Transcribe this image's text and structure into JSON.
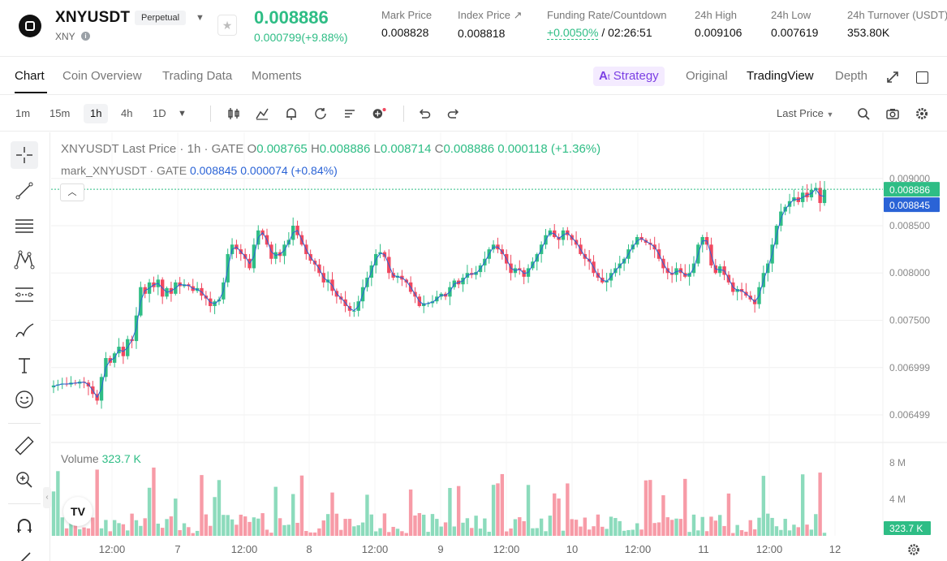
{
  "ticker": {
    "symbol": "XNYUSDT",
    "contract_type": "Perpetual",
    "base": "XNY",
    "last_price": "0.008886",
    "change": "0.000799(+9.88%)",
    "stats": [
      {
        "label": "Mark Price",
        "value": "0.008828"
      },
      {
        "label": "Index Price ↗",
        "value": "0.008818"
      },
      {
        "label": "Funding Rate/Countdown",
        "value_green": "+0.0050%",
        "value_rest": " / 02:26:51"
      },
      {
        "label": "24h High",
        "value": "0.009106"
      },
      {
        "label": "24h Low",
        "value": "0.007619"
      },
      {
        "label": "24h Turnover (USDT)",
        "value": "353.80K"
      }
    ]
  },
  "tabs": [
    "Chart",
    "Coin Overview",
    "Trading Data",
    "Moments"
  ],
  "right_tabs": {
    "strategy": "Strategy",
    "original": "Original",
    "tradingview": "TradingView",
    "depth": "Depth"
  },
  "intervals": [
    "1m",
    "15m",
    "1h",
    "4h",
    "1D"
  ],
  "active_interval": "1h",
  "price_type": "Last Price",
  "legend": {
    "title": "XNYUSDT Last Price · 1h · GATE",
    "o_label": "O",
    "o": "0.008765",
    "h_label": "H",
    "h": "0.008886",
    "l_label": "L",
    "l": "0.008714",
    "c_label": "C",
    "c": "0.008886",
    "delta": "0.000118 (+1.36%)",
    "mark_label": "mark_XNYUSDT · GATE",
    "mark_value": "0.008845",
    "mark_delta": "0.000074 (+0.84%)"
  },
  "volume_legend": {
    "label": "Volume",
    "value": "323.7 K"
  },
  "tv_logo": "TV",
  "colors": {
    "up": "#2ebd85",
    "down": "#f0485f",
    "mark": "#2a63d6",
    "accent": "#7b3fe4"
  },
  "chart_data": {
    "type": "candlestick",
    "title": "XNYUSDT Last Price · 1h · GATE",
    "y_ticks": [
      "0.009000",
      "0.008500",
      "0.008000",
      "0.007500",
      "0.006999",
      "0.006499"
    ],
    "y_tick_values": [
      0.009,
      0.0085,
      0.008,
      0.0075,
      0.006999,
      0.006499
    ],
    "ylim": [
      0.00625,
      0.00917
    ],
    "x_ticks": [
      "12:00",
      "7",
      "12:00",
      "8",
      "12:00",
      "9",
      "12:00",
      "10",
      "12:00",
      "11",
      "12:00",
      "12"
    ],
    "price_tags": {
      "last": "0.008886",
      "mark": "0.008845"
    },
    "volume_ticks": [
      "8 M",
      "4 M"
    ],
    "volume_tick_values": [
      8,
      4
    ],
    "volume_last_tag": "323.7 K",
    "closes": [
      0.00681,
      0.00682,
      0.00683,
      0.00682,
      0.00684,
      0.00683,
      0.00685,
      0.00684,
      0.0068,
      0.00672,
      0.00665,
      0.0069,
      0.0071,
      0.00705,
      0.00715,
      0.00722,
      0.00712,
      0.0073,
      0.00728,
      0.00755,
      0.00785,
      0.00778,
      0.0079,
      0.00785,
      0.00793,
      0.00775,
      0.00784,
      0.00778,
      0.0079,
      0.00786,
      0.00788,
      0.00786,
      0.00781,
      0.00784,
      0.00776,
      0.00773,
      0.00765,
      0.0077,
      0.00772,
      0.0079,
      0.0082,
      0.0083,
      0.00825,
      0.0082,
      0.00815,
      0.00805,
      0.0083,
      0.00845,
      0.0084,
      0.0083,
      0.00815,
      0.00822,
      0.00818,
      0.0083,
      0.00835,
      0.0085,
      0.0084,
      0.0083,
      0.0082,
      0.00813,
      0.00809,
      0.008,
      0.0079,
      0.00793,
      0.00781,
      0.00775,
      0.00772,
      0.00765,
      0.0076,
      0.0076,
      0.0077,
      0.00785,
      0.00795,
      0.00808,
      0.0082,
      0.00822,
      0.00817,
      0.008,
      0.00795,
      0.00797,
      0.00793,
      0.0079,
      0.0078,
      0.00775,
      0.00765,
      0.00768,
      0.00768,
      0.0077,
      0.00775,
      0.00778,
      0.00775,
      0.00785,
      0.00792,
      0.00788,
      0.00795,
      0.008,
      0.00798,
      0.00801,
      0.00808,
      0.00815,
      0.00825,
      0.0083,
      0.00825,
      0.0082,
      0.0081,
      0.008,
      0.00805,
      0.00803,
      0.00796,
      0.00805,
      0.00812,
      0.0082,
      0.0083,
      0.0084,
      0.00845,
      0.00838,
      0.00835,
      0.00845,
      0.0084,
      0.00835,
      0.0083,
      0.0082,
      0.00815,
      0.00812,
      0.008,
      0.00795,
      0.0079,
      0.00792,
      0.008,
      0.00805,
      0.0081,
      0.00815,
      0.00825,
      0.0083,
      0.00838,
      0.00835,
      0.00832,
      0.0083,
      0.00825,
      0.00815,
      0.00805,
      0.008,
      0.00798,
      0.00805,
      0.008,
      0.00796,
      0.008,
      0.0081,
      0.0083,
      0.00838,
      0.0083,
      0.00808,
      0.008,
      0.00807,
      0.00798,
      0.0079,
      0.0078,
      0.00783,
      0.0078,
      0.00776,
      0.00772,
      0.00767,
      0.00785,
      0.008,
      0.0081,
      0.0083,
      0.0085,
      0.00865,
      0.0087,
      0.00876,
      0.0088,
      0.00875,
      0.00885,
      0.0088,
      0.00888,
      0.0089,
      0.00874,
      0.00888
    ]
  }
}
